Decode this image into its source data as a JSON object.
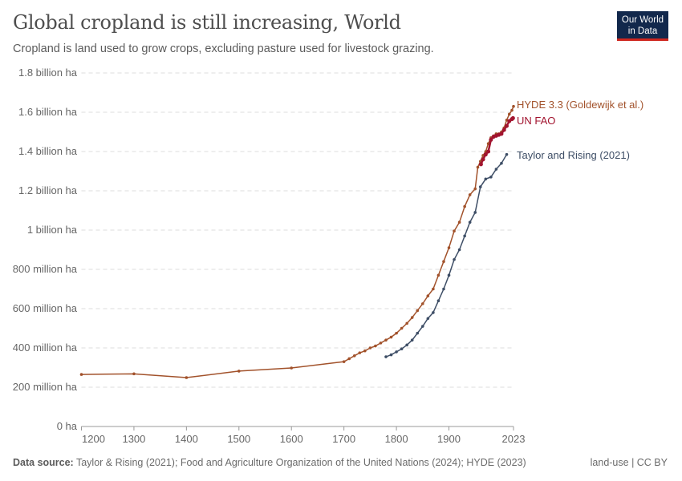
{
  "header": {
    "title": "Global cropland is still increasing, World",
    "subtitle": "Cropland is land used to grow crops, excluding pasture used for livestock grazing.",
    "logo": "Our World in Data"
  },
  "footer": {
    "source_label": "Data source:",
    "source": "Taylor & Rising (2021); Food and Agriculture Organization of the United Nations (2024); HYDE (2023)",
    "right": "land-use | CC BY"
  },
  "chart_data": {
    "type": "line",
    "title": "Global cropland is still increasing, World",
    "xlim": [
      1200,
      2023
    ],
    "ylim": [
      0,
      1800000000
    ],
    "grid": "horizontal dashed",
    "legend": "inline labels right",
    "x_ticks": [
      1200,
      1300,
      1400,
      1500,
      1600,
      1700,
      1800,
      1900,
      2023
    ],
    "y_ticks": [
      {
        "v": 0,
        "label": "0 ha"
      },
      {
        "v": 200000000,
        "label": "200 million ha"
      },
      {
        "v": 400000000,
        "label": "400 million ha"
      },
      {
        "v": 600000000,
        "label": "600 million ha"
      },
      {
        "v": 800000000,
        "label": "800 million ha"
      },
      {
        "v": 1000000000,
        "label": "1 billion ha"
      },
      {
        "v": 1200000000,
        "label": "1.2 billion ha"
      },
      {
        "v": 1400000000,
        "label": "1.4 billion ha"
      },
      {
        "v": 1600000000,
        "label": "1.6 billion ha"
      },
      {
        "v": 1800000000,
        "label": "1.8 billion ha"
      }
    ],
    "series": [
      {
        "name": "HYDE 3.3 (Goldewijk et al.)",
        "color": "#a2522b",
        "points": [
          [
            1200,
            265
          ],
          [
            1300,
            268
          ],
          [
            1400,
            249
          ],
          [
            1500,
            282
          ],
          [
            1600,
            298
          ],
          [
            1700,
            330
          ],
          [
            1710,
            345
          ],
          [
            1720,
            360
          ],
          [
            1730,
            375
          ],
          [
            1740,
            385
          ],
          [
            1750,
            400
          ],
          [
            1760,
            410
          ],
          [
            1770,
            425
          ],
          [
            1780,
            440
          ],
          [
            1790,
            455
          ],
          [
            1800,
            475
          ],
          [
            1810,
            500
          ],
          [
            1820,
            525
          ],
          [
            1830,
            555
          ],
          [
            1840,
            590
          ],
          [
            1850,
            625
          ],
          [
            1860,
            665
          ],
          [
            1870,
            700
          ],
          [
            1880,
            770
          ],
          [
            1890,
            840
          ],
          [
            1900,
            910
          ],
          [
            1910,
            995
          ],
          [
            1920,
            1040
          ],
          [
            1930,
            1120
          ],
          [
            1940,
            1180
          ],
          [
            1950,
            1210
          ],
          [
            1955,
            1320
          ],
          [
            1960,
            1350
          ],
          [
            1965,
            1380
          ],
          [
            1970,
            1400
          ],
          [
            1975,
            1440
          ],
          [
            1980,
            1470
          ],
          [
            1985,
            1480
          ],
          [
            1990,
            1490
          ],
          [
            1995,
            1490
          ],
          [
            2000,
            1500
          ],
          [
            2005,
            1520
          ],
          [
            2010,
            1560
          ],
          [
            2015,
            1590
          ],
          [
            2020,
            1610
          ],
          [
            2023,
            1630
          ]
        ]
      },
      {
        "name": "UN FAO",
        "color": "#a2142f",
        "points": [
          [
            1961,
            1335
          ],
          [
            1965,
            1360
          ],
          [
            1970,
            1385
          ],
          [
            1975,
            1400
          ],
          [
            1980,
            1460
          ],
          [
            1985,
            1475
          ],
          [
            1990,
            1480
          ],
          [
            1995,
            1485
          ],
          [
            2000,
            1490
          ],
          [
            2005,
            1510
          ],
          [
            2010,
            1530
          ],
          [
            2015,
            1555
          ],
          [
            2020,
            1565
          ],
          [
            2022,
            1570
          ]
        ]
      },
      {
        "name": "Taylor and Rising (2021)",
        "color": "#3e4e66",
        "points": [
          [
            1780,
            355
          ],
          [
            1790,
            365
          ],
          [
            1800,
            380
          ],
          [
            1810,
            395
          ],
          [
            1820,
            415
          ],
          [
            1830,
            440
          ],
          [
            1840,
            475
          ],
          [
            1850,
            510
          ],
          [
            1860,
            550
          ],
          [
            1870,
            580
          ],
          [
            1880,
            640
          ],
          [
            1890,
            700
          ],
          [
            1900,
            770
          ],
          [
            1910,
            850
          ],
          [
            1920,
            900
          ],
          [
            1930,
            970
          ],
          [
            1940,
            1040
          ],
          [
            1950,
            1090
          ],
          [
            1960,
            1220
          ],
          [
            1970,
            1260
          ],
          [
            1980,
            1270
          ],
          [
            1990,
            1310
          ],
          [
            2000,
            1340
          ],
          [
            2010,
            1385
          ]
        ]
      }
    ],
    "units": "million ha"
  }
}
